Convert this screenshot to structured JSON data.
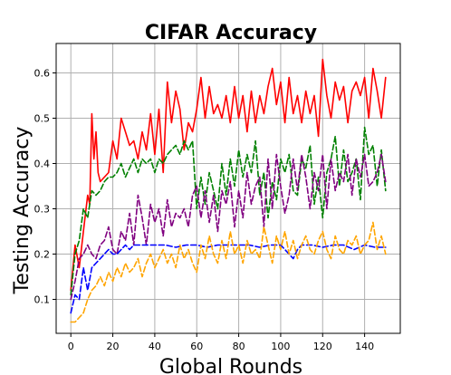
{
  "chart_data": {
    "type": "line",
    "title": "CIFAR Accuracy",
    "xlabel": "Global Rounds",
    "ylabel": "Testing Accuracy",
    "xlim": [
      -7,
      157
    ],
    "ylim": [
      0.025,
      0.665
    ],
    "xticks": [
      0,
      20,
      40,
      60,
      80,
      100,
      120,
      140
    ],
    "yticks": [
      0.1,
      0.2,
      0.3,
      0.4,
      0.5,
      0.6
    ],
    "grid": true,
    "legend": "none",
    "series": [
      {
        "color": "#ff0000",
        "dash": "solid",
        "x": [
          0,
          2,
          4,
          6,
          8,
          9,
          10,
          11,
          12,
          13,
          14,
          16,
          18,
          20,
          22,
          24,
          26,
          28,
          30,
          32,
          34,
          36,
          38,
          40,
          42,
          44,
          46,
          48,
          50,
          52,
          54,
          56,
          58,
          60,
          62,
          64,
          66,
          68,
          70,
          72,
          74,
          76,
          78,
          80,
          82,
          84,
          86,
          88,
          90,
          92,
          94,
          96,
          98,
          100,
          102,
          104,
          106,
          108,
          110,
          112,
          114,
          116,
          118,
          120,
          122,
          124,
          126,
          128,
          130,
          132,
          134,
          136,
          138,
          140,
          142,
          144,
          146,
          148,
          150
        ],
        "values": [
          0.12,
          0.22,
          0.17,
          0.25,
          0.33,
          0.31,
          0.51,
          0.41,
          0.47,
          0.38,
          0.36,
          0.37,
          0.38,
          0.45,
          0.41,
          0.5,
          0.47,
          0.44,
          0.45,
          0.41,
          0.47,
          0.43,
          0.51,
          0.42,
          0.52,
          0.38,
          0.58,
          0.49,
          0.56,
          0.52,
          0.43,
          0.49,
          0.47,
          0.52,
          0.59,
          0.5,
          0.57,
          0.51,
          0.53,
          0.5,
          0.55,
          0.49,
          0.57,
          0.5,
          0.55,
          0.47,
          0.56,
          0.49,
          0.55,
          0.51,
          0.57,
          0.61,
          0.53,
          0.58,
          0.49,
          0.59,
          0.51,
          0.55,
          0.49,
          0.56,
          0.51,
          0.55,
          0.46,
          0.63,
          0.55,
          0.5,
          0.58,
          0.54,
          0.57,
          0.49,
          0.56,
          0.58,
          0.55,
          0.59,
          0.5,
          0.61,
          0.56,
          0.5,
          0.59
        ]
      },
      {
        "color": "#008000",
        "dash": "dashed",
        "x": [
          0,
          2,
          4,
          6,
          8,
          10,
          12,
          14,
          16,
          18,
          20,
          22,
          24,
          26,
          28,
          30,
          32,
          34,
          36,
          38,
          40,
          42,
          44,
          46,
          48,
          50,
          52,
          54,
          56,
          58,
          60,
          62,
          64,
          66,
          68,
          70,
          72,
          74,
          76,
          78,
          80,
          82,
          84,
          86,
          88,
          90,
          92,
          94,
          96,
          98,
          100,
          102,
          104,
          106,
          108,
          110,
          112,
          114,
          116,
          118,
          120,
          122,
          124,
          126,
          128,
          130,
          132,
          134,
          136,
          138,
          140,
          142,
          144,
          146,
          148,
          150
        ],
        "values": [
          0.11,
          0.2,
          0.23,
          0.3,
          0.28,
          0.34,
          0.33,
          0.34,
          0.36,
          0.37,
          0.37,
          0.38,
          0.4,
          0.37,
          0.39,
          0.41,
          0.38,
          0.41,
          0.4,
          0.41,
          0.38,
          0.41,
          0.4,
          0.42,
          0.43,
          0.44,
          0.42,
          0.45,
          0.43,
          0.45,
          0.3,
          0.37,
          0.31,
          0.38,
          0.34,
          0.3,
          0.4,
          0.33,
          0.41,
          0.35,
          0.43,
          0.37,
          0.42,
          0.38,
          0.45,
          0.33,
          0.38,
          0.28,
          0.36,
          0.32,
          0.41,
          0.38,
          0.42,
          0.34,
          0.33,
          0.41,
          0.39,
          0.44,
          0.31,
          0.37,
          0.28,
          0.38,
          0.41,
          0.46,
          0.35,
          0.43,
          0.36,
          0.38,
          0.41,
          0.32,
          0.48,
          0.42,
          0.44,
          0.35,
          0.43,
          0.34
        ]
      },
      {
        "color": "#800080",
        "dash": "dashed",
        "x": [
          0,
          2,
          4,
          6,
          8,
          10,
          12,
          14,
          16,
          18,
          20,
          22,
          24,
          26,
          28,
          30,
          32,
          34,
          36,
          38,
          40,
          42,
          44,
          46,
          48,
          50,
          52,
          54,
          56,
          58,
          60,
          62,
          64,
          66,
          68,
          70,
          72,
          74,
          76,
          78,
          80,
          82,
          84,
          86,
          88,
          90,
          92,
          94,
          96,
          98,
          100,
          102,
          104,
          106,
          108,
          110,
          112,
          114,
          116,
          118,
          120,
          122,
          124,
          126,
          128,
          130,
          132,
          134,
          136,
          138,
          140,
          142,
          144,
          146,
          148,
          150
        ],
        "values": [
          0.1,
          0.14,
          0.19,
          0.2,
          0.22,
          0.2,
          0.19,
          0.22,
          0.23,
          0.26,
          0.21,
          0.2,
          0.25,
          0.23,
          0.29,
          0.22,
          0.33,
          0.28,
          0.22,
          0.31,
          0.27,
          0.3,
          0.24,
          0.32,
          0.26,
          0.29,
          0.28,
          0.3,
          0.26,
          0.33,
          0.35,
          0.28,
          0.34,
          0.27,
          0.33,
          0.25,
          0.34,
          0.31,
          0.36,
          0.26,
          0.34,
          0.28,
          0.38,
          0.31,
          0.35,
          0.37,
          0.26,
          0.41,
          0.3,
          0.42,
          0.35,
          0.29,
          0.33,
          0.41,
          0.34,
          0.42,
          0.37,
          0.3,
          0.38,
          0.34,
          0.42,
          0.3,
          0.41,
          0.34,
          0.38,
          0.36,
          0.42,
          0.33,
          0.41,
          0.37,
          0.42,
          0.35,
          0.36,
          0.38,
          0.42,
          0.36
        ]
      },
      {
        "color": "#0000ff",
        "dash": "dashed",
        "x": [
          0,
          2,
          4,
          6,
          8,
          10,
          12,
          14,
          16,
          18,
          20,
          22,
          24,
          26,
          28,
          30,
          35,
          40,
          45,
          50,
          55,
          60,
          65,
          70,
          75,
          80,
          85,
          90,
          95,
          100,
          102,
          104,
          106,
          108,
          110,
          115,
          120,
          125,
          130,
          135,
          140,
          145,
          150
        ],
        "values": [
          0.07,
          0.11,
          0.1,
          0.17,
          0.12,
          0.17,
          0.18,
          0.19,
          0.2,
          0.21,
          0.2,
          0.2,
          0.21,
          0.22,
          0.21,
          0.22,
          0.22,
          0.22,
          0.22,
          0.215,
          0.22,
          0.22,
          0.215,
          0.22,
          0.22,
          0.22,
          0.22,
          0.215,
          0.22,
          0.22,
          0.21,
          0.2,
          0.19,
          0.21,
          0.22,
          0.22,
          0.215,
          0.22,
          0.22,
          0.21,
          0.22,
          0.215,
          0.215
        ]
      },
      {
        "color": "#ffa500",
        "dash": "dashed",
        "x": [
          0,
          2,
          4,
          6,
          8,
          10,
          12,
          14,
          16,
          18,
          20,
          22,
          24,
          26,
          28,
          30,
          32,
          34,
          36,
          38,
          40,
          42,
          44,
          46,
          48,
          50,
          52,
          54,
          56,
          58,
          60,
          62,
          64,
          66,
          68,
          70,
          72,
          74,
          76,
          78,
          80,
          82,
          84,
          86,
          88,
          90,
          92,
          94,
          96,
          98,
          100,
          102,
          104,
          106,
          108,
          110,
          112,
          114,
          116,
          118,
          120,
          122,
          124,
          126,
          128,
          130,
          132,
          134,
          136,
          138,
          140,
          142,
          144,
          146,
          148,
          150
        ],
        "values": [
          0.05,
          0.05,
          0.06,
          0.07,
          0.1,
          0.12,
          0.13,
          0.15,
          0.13,
          0.16,
          0.14,
          0.17,
          0.15,
          0.18,
          0.16,
          0.17,
          0.19,
          0.15,
          0.18,
          0.2,
          0.17,
          0.19,
          0.21,
          0.18,
          0.2,
          0.17,
          0.22,
          0.19,
          0.21,
          0.18,
          0.16,
          0.22,
          0.19,
          0.24,
          0.2,
          0.18,
          0.23,
          0.19,
          0.25,
          0.2,
          0.22,
          0.18,
          0.23,
          0.2,
          0.21,
          0.19,
          0.26,
          0.22,
          0.18,
          0.24,
          0.21,
          0.25,
          0.2,
          0.23,
          0.19,
          0.22,
          0.24,
          0.21,
          0.2,
          0.23,
          0.25,
          0.21,
          0.19,
          0.24,
          0.21,
          0.2,
          0.23,
          0.22,
          0.24,
          0.2,
          0.22,
          0.23,
          0.27,
          0.21,
          0.24,
          0.2
        ]
      }
    ]
  }
}
